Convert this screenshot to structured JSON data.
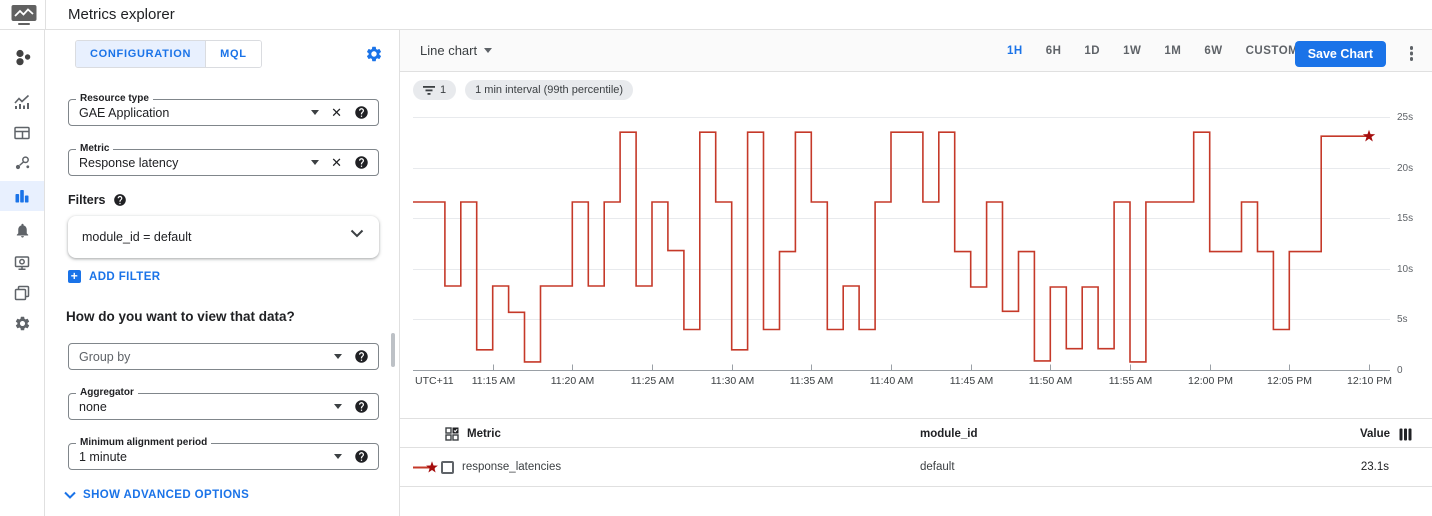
{
  "header": {
    "title": "Metrics explorer"
  },
  "nav": {
    "items": [
      {
        "name": "monitoring-overview",
        "icon": "cluster-icon",
        "active": false
      },
      {
        "name": "metrics",
        "icon": "trend-chart-icon",
        "active": false
      },
      {
        "name": "dashboards",
        "icon": "dashboard-card-icon",
        "active": false
      },
      {
        "name": "services",
        "icon": "services-graph-icon",
        "active": false
      },
      {
        "name": "metrics-explorer",
        "icon": "bar-chart-icon",
        "active": true
      },
      {
        "name": "alerting",
        "icon": "bell-icon",
        "active": false
      },
      {
        "name": "uptime-checks",
        "icon": "uptime-monitor-icon",
        "active": false
      },
      {
        "name": "groups",
        "icon": "groups-icon",
        "active": false
      },
      {
        "name": "settings",
        "icon": "gear-icon",
        "active": false
      }
    ]
  },
  "config": {
    "tabs": [
      {
        "label": "CONFIGURATION",
        "active": true
      },
      {
        "label": "MQL",
        "active": false
      }
    ],
    "settings_icon": "gear-icon",
    "resource_type": {
      "label": "Resource type",
      "value": "GAE Application",
      "icons": [
        "dropdown-arrow-icon",
        "clear-icon",
        "help-icon"
      ]
    },
    "metric": {
      "label": "Metric",
      "value": "Response latency",
      "icons": [
        "dropdown-arrow-icon",
        "clear-icon",
        "help-icon"
      ]
    },
    "filters": {
      "label": "Filters",
      "help_icon": "help-icon",
      "chip": "module_id = default",
      "chip_icon": "chevron-down-icon",
      "add_label": "ADD FILTER",
      "add_icon": "plus-icon"
    },
    "view_question": "How do you want to view that data?",
    "group_by": {
      "placeholder": "Group by",
      "icons": [
        "dropdown-arrow-icon",
        "help-icon"
      ]
    },
    "aggregator": {
      "label": "Aggregator",
      "value": "none",
      "icons": [
        "dropdown-arrow-icon",
        "help-icon"
      ]
    },
    "min_alignment": {
      "label": "Minimum alignment period",
      "value": "1 minute",
      "icons": [
        "dropdown-arrow-icon",
        "help-icon"
      ]
    },
    "advanced_label": "SHOW ADVANCED OPTIONS",
    "advanced_icon": "chevron-down-icon"
  },
  "chart_header": {
    "chart_type_label": "Line chart",
    "chart_type_icon": "dropdown-arrow-icon",
    "time_ranges": [
      "1H",
      "6H",
      "1D",
      "1W",
      "1M",
      "6W",
      "CUSTOM"
    ],
    "active_range": "1H",
    "save_button": "Save Chart",
    "more_icon": "kebab-menu-icon"
  },
  "chips": {
    "filter_icon": "filter-funnel-icon",
    "filter_count": "1",
    "interval": "1 min interval (99th percentile)"
  },
  "chart_data": {
    "type": "line",
    "step": true,
    "grid": true,
    "x_axis_prefix": "UTC+11",
    "x_interval_minutes": 1,
    "ylim": [
      0,
      25
    ],
    "y_unit": "seconds",
    "y_ticks": [
      {
        "value": 0,
        "label": "0"
      },
      {
        "value": 5,
        "label": "5s"
      },
      {
        "value": 10,
        "label": "10s"
      },
      {
        "value": 15,
        "label": "15s"
      },
      {
        "value": 20,
        "label": "20s"
      },
      {
        "value": 25,
        "label": "25s"
      }
    ],
    "x_ticks": [
      {
        "minute": 5,
        "label": "11:15 AM"
      },
      {
        "minute": 10,
        "label": "11:20 AM"
      },
      {
        "minute": 15,
        "label": "11:25 AM"
      },
      {
        "minute": 20,
        "label": "11:30 AM"
      },
      {
        "minute": 25,
        "label": "11:35 AM"
      },
      {
        "minute": 30,
        "label": "11:40 AM"
      },
      {
        "minute": 35,
        "label": "11:45 AM"
      },
      {
        "minute": 40,
        "label": "11:50 AM"
      },
      {
        "minute": 45,
        "label": "11:55 AM"
      },
      {
        "minute": 50,
        "label": "12:00 PM"
      },
      {
        "minute": 55,
        "label": "12:05 PM"
      },
      {
        "minute": 60,
        "label": "12:10 PM"
      }
    ],
    "series": [
      {
        "name": "response_latencies",
        "color": "#c53929",
        "end_marker": "star",
        "end_marker_color": "#a50e0e",
        "latest_value": "23.1s",
        "values": [
          16.6,
          16.6,
          8.3,
          16.6,
          2.0,
          8.3,
          5.7,
          0.8,
          8.3,
          8.3,
          16.6,
          8.3,
          16.6,
          23.5,
          8.3,
          16.6,
          11.8,
          4.0,
          23.5,
          16.6,
          2.0,
          23.5,
          4.0,
          11.7,
          23.5,
          16.6,
          4.0,
          8.3,
          4.0,
          16.6,
          23.5,
          23.5,
          16.6,
          23.5,
          11.7,
          8.2,
          16.6,
          5.8,
          11.7,
          0.9,
          8.2,
          2.1,
          8.2,
          2.1,
          16.6,
          0.8,
          16.6,
          16.6,
          16.6,
          23.5,
          11.7,
          11.7,
          16.6,
          11.7,
          4.0,
          11.7,
          11.7,
          23.1,
          23.1,
          23.1,
          23.1
        ]
      }
    ]
  },
  "table": {
    "columns": [
      "Metric",
      "module_id",
      "Value"
    ],
    "metric_header_icon": "table-display-icon",
    "value_header_icon": "columns-icon",
    "rows": [
      {
        "legend_icon": "star-line-marker-icon",
        "metric": "response_latencies",
        "module_id": "default",
        "value": "23.1s"
      }
    ]
  }
}
